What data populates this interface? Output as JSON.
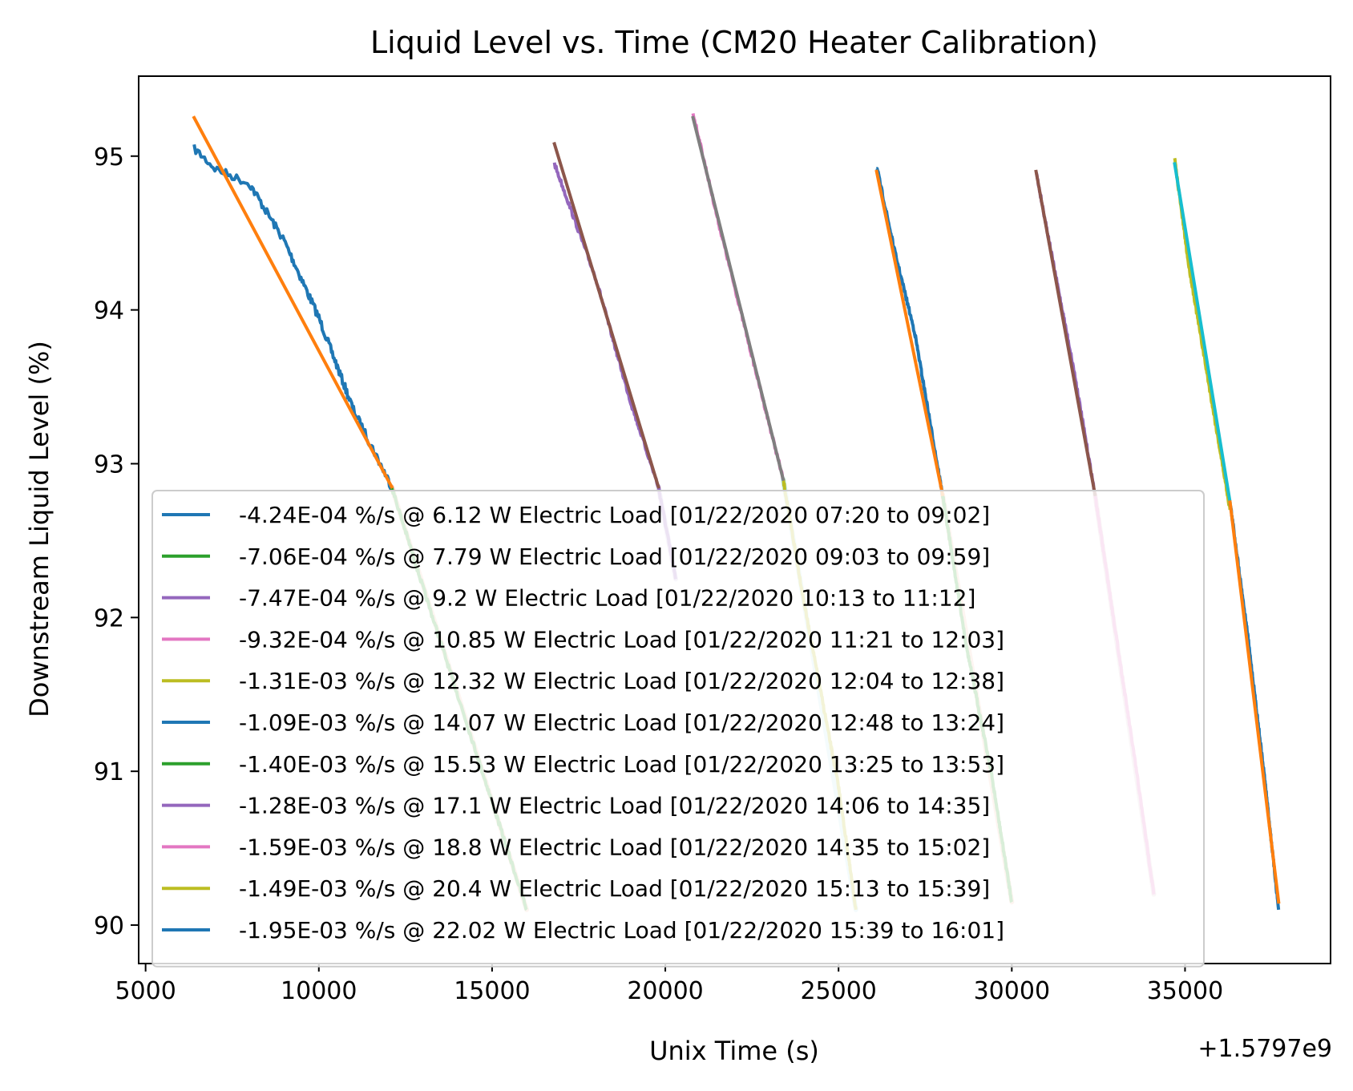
{
  "chart_data": {
    "type": "line",
    "title": "Liquid Level vs. Time (CM20 Heater Calibration)",
    "xlabel": "Unix Time (s)",
    "ylabel": "Downstream Liquid Level (%)",
    "x_offset_label": "+1.5797e9",
    "xlim": [
      4800,
      39200
    ],
    "ylim": [
      89.75,
      95.52
    ],
    "xticks": [
      5000,
      10000,
      15000,
      20000,
      25000,
      30000,
      35000
    ],
    "yticks": [
      90,
      91,
      92,
      93,
      94,
      95
    ],
    "grid": false,
    "legend_position": "lower-left",
    "series": [
      {
        "name": "-4.24E-04 %/s @ 6.12 W Electric Load [01/22/2020 07:20 to 09:02]",
        "color": "#1f77b4",
        "x": [
          6400,
          7000,
          8000,
          9000,
          10000,
          11000,
          12100
        ],
        "y": [
          95.05,
          94.92,
          94.82,
          94.45,
          93.95,
          93.35,
          92.85
        ]
      },
      {
        "name": "-7.06E-04 %/s @ 7.79 W Electric Load [01/22/2020 09:03 to 09:59]",
        "color": "#2ca02c",
        "x": [
          12100,
          13000,
          14000,
          15000,
          16000
        ],
        "y": [
          92.85,
          92.2,
          91.5,
          90.8,
          90.1
        ]
      },
      {
        "name": "-7.47E-04 %/s @ 9.2 W Electric Load [01/22/2020 10:13 to 11:12]",
        "color": "#9467bd",
        "x": [
          16800,
          17200,
          18000,
          19000,
          19800,
          20300
        ],
        "y": [
          94.95,
          94.7,
          94.2,
          93.4,
          92.85,
          92.25
        ]
      },
      {
        "name": "-9.32E-04 %/s @ 10.85 W Electric Load [01/22/2020 11:21 to 12:03]",
        "color": "#e377c2",
        "x": [
          20800,
          21500,
          22500,
          23400
        ],
        "y": [
          95.28,
          94.6,
          93.7,
          92.9
        ]
      },
      {
        "name": "-1.31E-03 %/s @ 12.32 W Electric Load [01/22/2020 12:04 to 12:38]",
        "color": "#bcbd22",
        "x": [
          23400,
          24000,
          25000,
          25500
        ],
        "y": [
          92.9,
          92.1,
          90.9,
          90.1
        ]
      },
      {
        "name": "-1.09E-03 %/s @ 14.07 W Electric Load [01/22/2020 12:48 to 13:24]",
        "color": "#1f77b4",
        "x": [
          26100,
          26600,
          27200,
          28000
        ],
        "y": [
          94.93,
          94.4,
          93.85,
          92.8
        ]
      },
      {
        "name": "-1.40E-03 %/s @ 15.53 W Electric Load [01/22/2020 13:25 to 13:53]",
        "color": "#2ca02c",
        "x": [
          28000,
          28700,
          29400,
          30000
        ],
        "y": [
          92.8,
          91.8,
          91.0,
          90.15
        ]
      },
      {
        "name": "-1.28E-03 %/s @ 17.1 W Electric Load [01/22/2020 14:06 to 14:35]",
        "color": "#9467bd",
        "x": [
          30700,
          31200,
          31800,
          32400
        ],
        "y": [
          94.9,
          94.3,
          93.6,
          92.8
        ]
      },
      {
        "name": "-1.59E-03 %/s @ 18.8 W Electric Load [01/22/2020 14:35 to 15:02]",
        "color": "#e377c2",
        "x": [
          32400,
          33000,
          33600,
          34100
        ],
        "y": [
          92.8,
          91.9,
          91.0,
          90.2
        ]
      },
      {
        "name": "-1.49E-03 %/s @ 20.4 W Electric Load [01/22/2020 15:13 to 15:39]",
        "color": "#bcbd22",
        "x": [
          34700,
          35100,
          35700,
          36300
        ],
        "y": [
          94.98,
          94.3,
          93.5,
          92.7
        ]
      },
      {
        "name": "-1.95E-03 %/s @ 22.02 W Electric Load [01/22/2020 15:39 to 16:01]",
        "color": "#1f77b4",
        "x": [
          36300,
          36800,
          37300,
          37700
        ],
        "y": [
          92.75,
          91.9,
          90.95,
          90.1
        ]
      }
    ],
    "fit_lines": [
      {
        "color": "#ff7f0e",
        "x": [
          6400,
          12100
        ],
        "y": [
          95.25,
          92.85
        ]
      },
      {
        "color": "#8c564b",
        "x": [
          16800,
          19800
        ],
        "y": [
          95.08,
          92.85
        ]
      },
      {
        "color": "#7f7f7f",
        "x": [
          20800,
          23400
        ],
        "y": [
          95.25,
          92.9
        ]
      },
      {
        "color": "#ff7f0e",
        "x": [
          26100,
          28000
        ],
        "y": [
          94.9,
          92.8
        ]
      },
      {
        "color": "#8c564b",
        "x": [
          30700,
          32400
        ],
        "y": [
          94.9,
          92.8
        ]
      },
      {
        "color": "#17becf",
        "x": [
          34700,
          36300
        ],
        "y": [
          94.95,
          92.75
        ]
      },
      {
        "color": "#ff7f0e",
        "x": [
          36300,
          37700
        ],
        "y": [
          92.75,
          90.15
        ]
      }
    ],
    "faint_fits": [
      {
        "color": "#f4c8b0",
        "x": [
          12100,
          16000
        ],
        "y": [
          92.85,
          90.1
        ]
      },
      {
        "color": "#d8cdea",
        "x": [
          19800,
          20300
        ],
        "y": [
          92.85,
          92.25
        ]
      },
      {
        "color": "#bfe9ef",
        "x": [
          23400,
          25500
        ],
        "y": [
          92.9,
          90.1
        ]
      },
      {
        "color": "#f4c8b0",
        "x": [
          28000,
          30000
        ],
        "y": [
          92.8,
          90.15
        ]
      },
      {
        "color": "#e3d4d6",
        "x": [
          32400,
          34100
        ],
        "y": [
          92.8,
          90.2
        ]
      }
    ]
  }
}
